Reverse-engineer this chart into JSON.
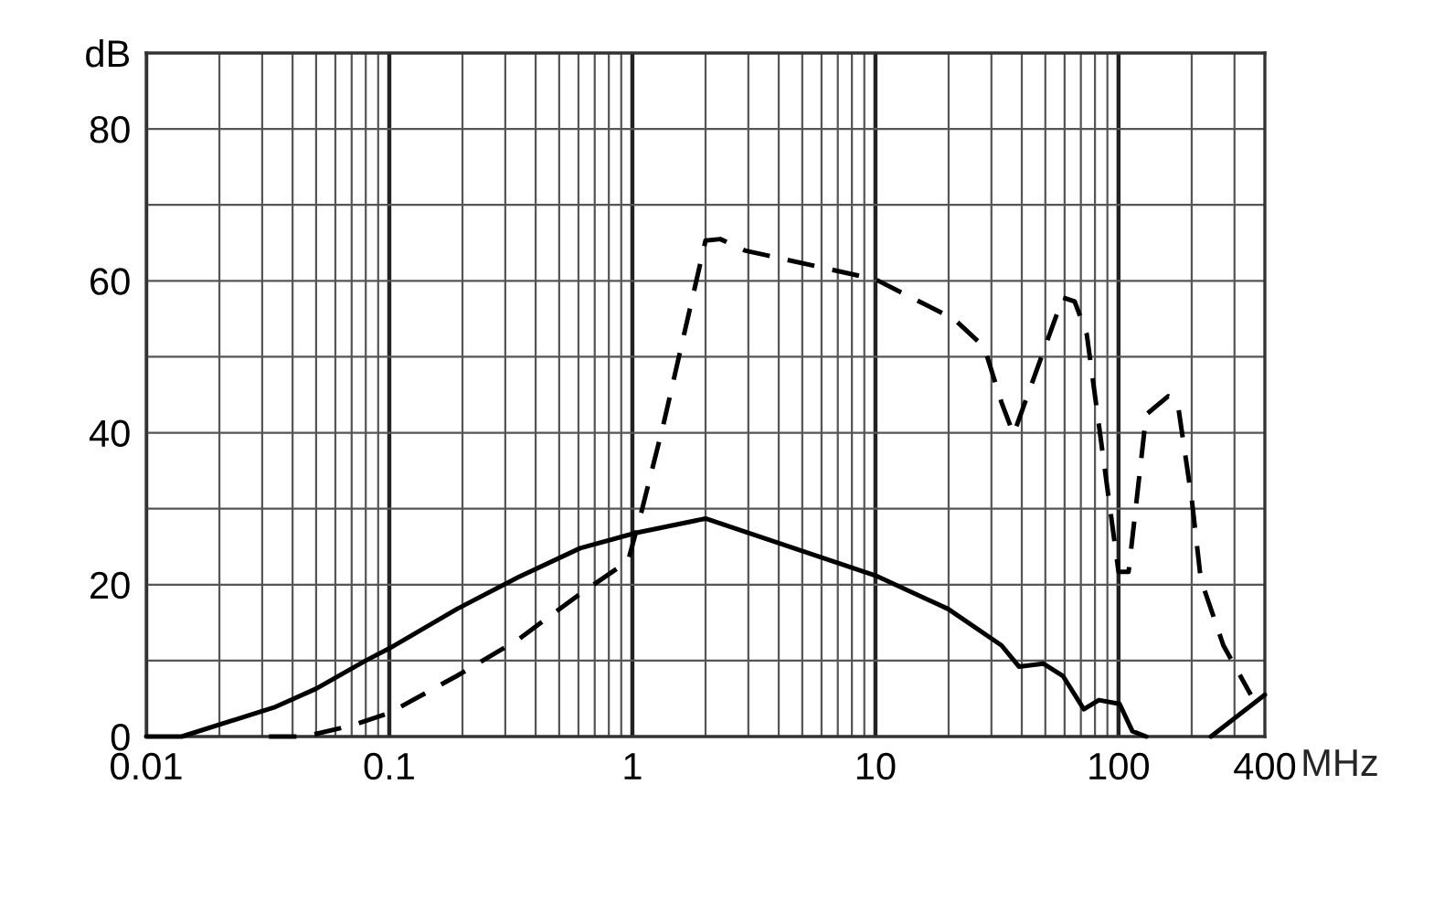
{
  "chart_data": {
    "type": "line",
    "xlabel": "MHz",
    "log": "x",
    "grid": true,
    "xlim": [
      0.01,
      400
    ],
    "ylim": [
      0,
      90
    ],
    "xticks": [
      0.01,
      {
        "value": 0.02,
        "label": null
      },
      {
        "value": 0.03,
        "label": null
      },
      {
        "value": 0.04,
        "label": null
      },
      {
        "value": 0.05,
        "label": null
      },
      {
        "value": 0.06,
        "label": null
      },
      {
        "value": 0.07,
        "label": null
      },
      {
        "value": 0.08,
        "label": null
      },
      {
        "value": 0.09,
        "label": null
      },
      0.1,
      {
        "value": 0.2,
        "label": null
      },
      {
        "value": 0.3,
        "label": null
      },
      {
        "value": 0.4,
        "label": null
      },
      {
        "value": 0.5,
        "label": null
      },
      {
        "value": 0.6,
        "label": null
      },
      {
        "value": 0.7,
        "label": null
      },
      {
        "value": 0.8,
        "label": null
      },
      {
        "value": 0.9,
        "label": null
      },
      1,
      {
        "value": 2,
        "label": null
      },
      {
        "value": 3,
        "label": null
      },
      {
        "value": 4,
        "label": null
      },
      {
        "value": 5,
        "label": null
      },
      {
        "value": 6,
        "label": null
      },
      {
        "value": 7,
        "label": null
      },
      {
        "value": 8,
        "label": null
      },
      {
        "value": 9,
        "label": null
      },
      10,
      {
        "value": 20,
        "label": null
      },
      {
        "value": 30,
        "label": null
      },
      {
        "value": 40,
        "label": null
      },
      {
        "value": 50,
        "label": null
      },
      {
        "value": 60,
        "label": null
      },
      {
        "value": 70,
        "label": null
      },
      {
        "value": 80,
        "label": null
      },
      {
        "value": 90,
        "label": null
      },
      100,
      {
        "value": 200,
        "label": null
      },
      {
        "value": 300,
        "label": null
      },
      400
    ],
    "yticks": [
      0,
      {
        "value": 10,
        "label": null
      },
      20,
      {
        "value": 30,
        "label": null
      },
      40,
      {
        "value": 50,
        "label": null
      },
      60,
      {
        "value": 70,
        "label": null
      },
      80,
      {
        "value": 90,
        "label": "dB"
      }
    ],
    "series": [
      {
        "color": "#000000",
        "line_style": "solid",
        "x": [
          0.01,
          0.014,
          0.034,
          0.05,
          0.08,
          0.1,
          0.19,
          0.34,
          0.61,
          1.03,
          2.0,
          10,
          19.9,
          33,
          39,
          49,
          59,
          72,
          83,
          101,
          114,
          130,
          135,
          240,
          400
        ],
        "values": [
          0,
          0,
          3.9,
          6.3,
          10,
          11.6,
          16.8,
          21,
          24.8,
          26.8,
          28.7,
          21.2,
          16.8,
          12,
          9.2,
          9.6,
          8,
          3.6,
          4.8,
          4.3,
          0.7,
          0,
          null,
          0,
          5.5
        ]
      },
      {
        "color": "#000000",
        "line_style": "dashed",
        "x": [
          0.032,
          0.045,
          0.071,
          0.1,
          0.19,
          0.34,
          0.61,
          0.96,
          1.09,
          1.34,
          2.0,
          2.3,
          2.9,
          10,
          21,
          28,
          33,
          37,
          44,
          59,
          66,
          74,
          100,
          110,
          130,
          160,
          175,
          200,
          218,
          270,
          350
        ],
        "values": [
          0,
          0,
          1.5,
          3.1,
          8,
          12.8,
          18.8,
          23.1,
          29.6,
          41,
          65.3,
          65.5,
          64,
          60.2,
          55,
          51.3,
          44,
          39.8,
          46.5,
          57.8,
          57.3,
          53,
          21.7,
          21.7,
          42.4,
          44.8,
          44,
          31.3,
          20.7,
          12,
          5.5
        ]
      }
    ]
  }
}
